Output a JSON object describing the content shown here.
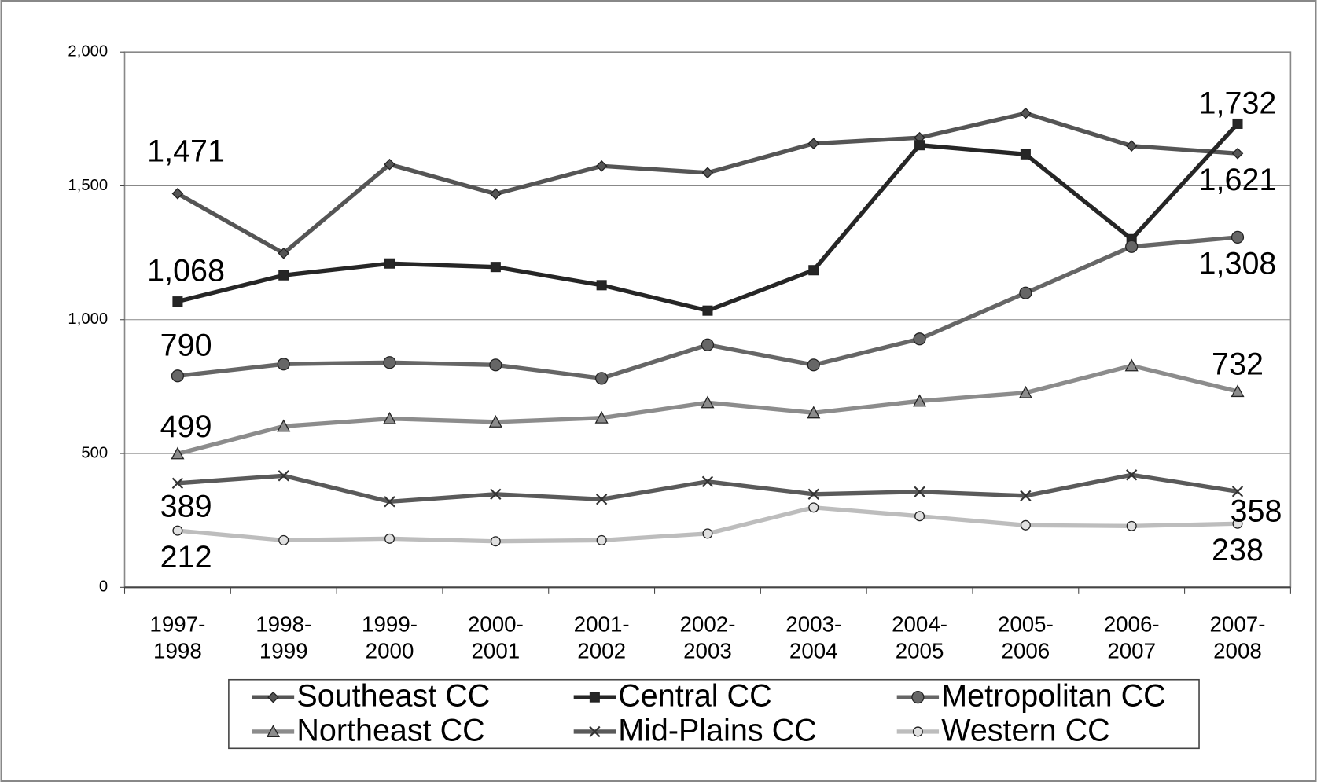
{
  "chart_data": {
    "type": "line",
    "categories": [
      "1997-1998",
      "1998-1999",
      "1999-2000",
      "2000-2001",
      "2001-2002",
      "2002-2003",
      "2003-2004",
      "2004-2005",
      "2005-2006",
      "2006-2007",
      "2007-2008"
    ],
    "ylim": [
      0,
      2000
    ],
    "yticks": [
      0,
      500,
      {
        "value": 1000,
        "label": "1,000"
      },
      {
        "value": 1500,
        "label": "1,500"
      },
      {
        "value": 2000,
        "label": "2,000"
      }
    ],
    "grid": true,
    "legend": "bottom",
    "series": [
      {
        "name": "Southeast CC",
        "color": "#555555",
        "marker": "diamond",
        "values": [
          1471,
          1248,
          1580,
          1470,
          1574,
          1549,
          1658,
          1680,
          1771,
          1649,
          1621
        ],
        "value_labels": [
          "1,471",
          null,
          null,
          null,
          null,
          null,
          null,
          null,
          null,
          null,
          "1,621"
        ]
      },
      {
        "name": "Central CC",
        "color": "#262626",
        "marker": "square",
        "values": [
          1068,
          1166,
          1210,
          1197,
          1129,
          1034,
          1185,
          1652,
          1618,
          1301,
          1732
        ],
        "value_labels": [
          "1,068",
          null,
          null,
          null,
          null,
          null,
          null,
          null,
          null,
          null,
          "1,732"
        ]
      },
      {
        "name": "Metropolitan CC",
        "color": "#666666",
        "marker": "circle",
        "values": [
          790,
          834,
          840,
          831,
          781,
          906,
          831,
          928,
          1100,
          1273,
          1308
        ],
        "value_labels": [
          null,
          null,
          null,
          null,
          null,
          null,
          null,
          null,
          null,
          null,
          "1,308"
        ]
      },
      {
        "name": "Northeast CC",
        "color": "#8c8c8c",
        "marker": "triangle",
        "values": [
          499,
          602,
          630,
          618,
          633,
          690,
          652,
          696,
          727,
          828,
          732
        ]
      },
      {
        "name": "Mid-Plains CC",
        "color": "#5a5a5a",
        "marker": "x",
        "values": [
          389,
          417,
          320,
          348,
          329,
          395,
          348,
          357,
          342,
          420,
          358
        ]
      },
      {
        "name": "Western CC",
        "color": "#bdbdbd",
        "marker": "smallcircle",
        "values": [
          212,
          176,
          182,
          172,
          176,
          201,
          298,
          266,
          232,
          229,
          238
        ]
      }
    ]
  }
}
